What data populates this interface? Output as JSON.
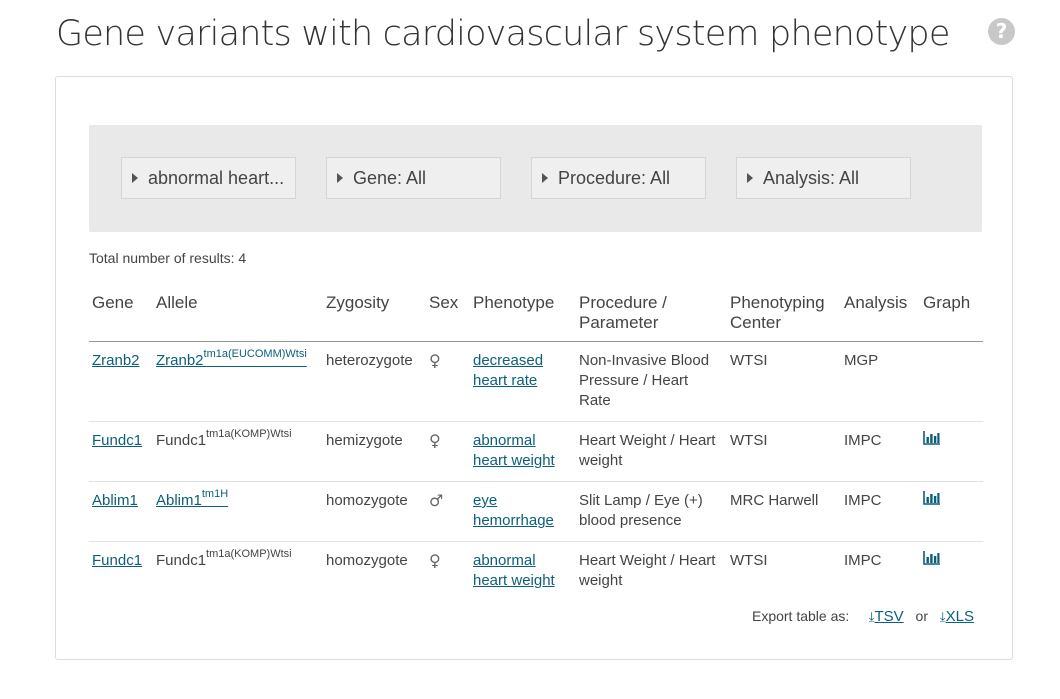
{
  "header": {
    "title": "Gene variants with cardiovascular system phenotype"
  },
  "help": {
    "glyph": "?"
  },
  "filters": [
    {
      "label": "abnormal heart..."
    },
    {
      "label": "Gene: All"
    },
    {
      "label": "Procedure: All"
    },
    {
      "label": "Analysis: All"
    }
  ],
  "summary": {
    "total_label": "Total number of results: 4"
  },
  "table": {
    "headers": {
      "gene": "Gene",
      "allele": "Allele",
      "zygosity": "Zygosity",
      "sex": "Sex",
      "phenotype": "Phenotype",
      "procedure_line1": "Procedure /",
      "procedure_line2": "Parameter",
      "center_line1": "Phenotyping",
      "center_line2": "Center",
      "analysis": "Analysis",
      "graph": "Graph"
    },
    "rows": [
      {
        "gene": "Zranb2",
        "allele_base": "Zranb2",
        "allele_sup": "tm1a(EUCOMM)Wtsi",
        "zygosity": "heterozygote",
        "sex": "♀",
        "phenotype": "decreased heart rate",
        "procedure": "Non-Invasive Blood Pressure / Heart Rate",
        "center": "WTSI",
        "analysis": "MGP"
      },
      {
        "gene": "Fundc1",
        "allele_base": "Fundc1",
        "allele_sup": "tm1a(KOMP)Wtsi",
        "zygosity": "hemizygote",
        "sex": "♀",
        "phenotype": "abnormal heart weight",
        "procedure": "Heart Weight / Heart weight",
        "center": "WTSI",
        "analysis": "IMPC"
      },
      {
        "gene": "Ablim1",
        "allele_base": "Ablim1",
        "allele_sup": "tm1H",
        "zygosity": "homozygote",
        "sex": "♂",
        "phenotype": "eye hemorrhage",
        "procedure": "Slit Lamp / Eye (+) blood presence",
        "center": "MRC Harwell",
        "analysis": "IMPC"
      },
      {
        "gene": "Fundc1",
        "allele_base": "Fundc1",
        "allele_sup": "tm1a(KOMP)Wtsi",
        "zygosity": "homozygote",
        "sex": "♀",
        "phenotype": "abnormal heart weight",
        "procedure": "Heart Weight / Heart weight",
        "center": "WTSI",
        "analysis": "IMPC"
      }
    ]
  },
  "export": {
    "label": "Export table as:",
    "tsv": "TSV",
    "or": "or",
    "xls": "XLS",
    "download_glyph": "⤓"
  },
  "colors": {
    "link": "#0b5f7a",
    "filter_bar": "#e9e9e9",
    "help_icon": "#c8c8c8"
  },
  "icons": {
    "sex_female": "female-icon",
    "sex_male": "male-icon",
    "graph": "bar-chart-icon",
    "download": "download-icon",
    "caret": "caret-right-icon",
    "help": "question-circle-icon"
  }
}
